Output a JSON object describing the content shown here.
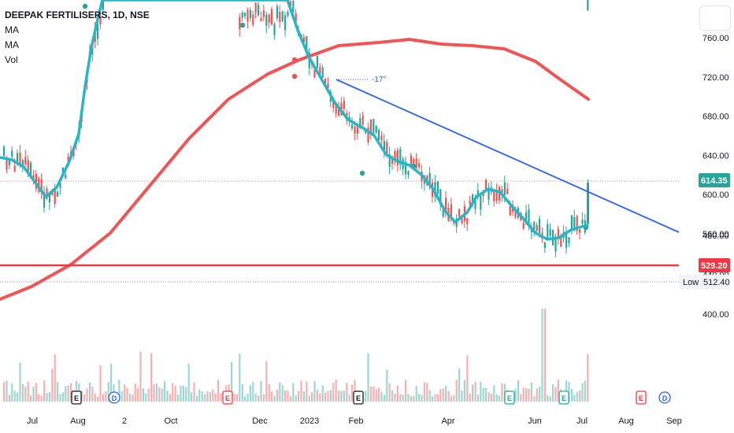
{
  "legend": {
    "symbol": "DEEPAK FERTILISERS, 1D, NSE",
    "ma1": "MA",
    "ma2": "MA",
    "vol": "Vol"
  },
  "price_labels": {
    "last": "614.35",
    "support": "529.20",
    "low_text": "Low",
    "low_value": "512.40",
    "last_color": "#26a69a",
    "support_color": "#f23645"
  },
  "trendline": {
    "angle_label": "-17°",
    "color": "#2962ff"
  },
  "colors": {
    "up": "#26a69a",
    "down": "#ef5350",
    "ma_fast": "#26b6c9",
    "ma_slow": "#f05454",
    "support": "#f23645"
  },
  "chart_data": {
    "type": "candlestick",
    "title": "DEEPAK FERTILISERS, 1D, NSE",
    "x_ticks": [
      "Jul",
      "Aug",
      "2",
      "Oct",
      "Dec",
      "2023",
      "Feb",
      "Apr",
      "Jun",
      "Jul",
      "Aug",
      "Sep"
    ],
    "y_ticks": [
      "760.00",
      "720.00",
      "680.00",
      "640.00",
      "600.00",
      "560.00",
      "480.00",
      "440.00",
      "400.00"
    ],
    "last_price": 614.35,
    "horizontal_level": 529.2,
    "period_low": 512.4,
    "trendline_angle": "-17°",
    "ma_fast": {
      "label": "MA",
      "points": [
        [
          "Jul",
          620
        ],
        [
          "Aug",
          610
        ],
        [
          "Aug",
          690
        ],
        [
          "2",
          810
        ],
        [
          "Dec",
          780
        ],
        [
          "2023",
          710
        ],
        [
          "Feb",
          640
        ],
        [
          "Apr",
          560
        ],
        [
          "Jun",
          555
        ],
        [
          "Jul",
          575
        ]
      ]
    },
    "ma_slow": {
      "label": "MA",
      "points": [
        [
          "Jul",
          490
        ],
        [
          "Aug",
          510
        ],
        [
          "Oct",
          630
        ],
        [
          "Dec",
          730
        ],
        [
          "Feb",
          760
        ],
        [
          "Apr",
          773
        ],
        [
          "Jun",
          760
        ],
        [
          "Jul",
          720
        ]
      ]
    },
    "volume_ticks": [
      "480.00",
      "440.00",
      "400.00"
    ],
    "events": [
      "E",
      "D",
      "E",
      "E",
      "E",
      "E",
      "E",
      "D"
    ]
  }
}
